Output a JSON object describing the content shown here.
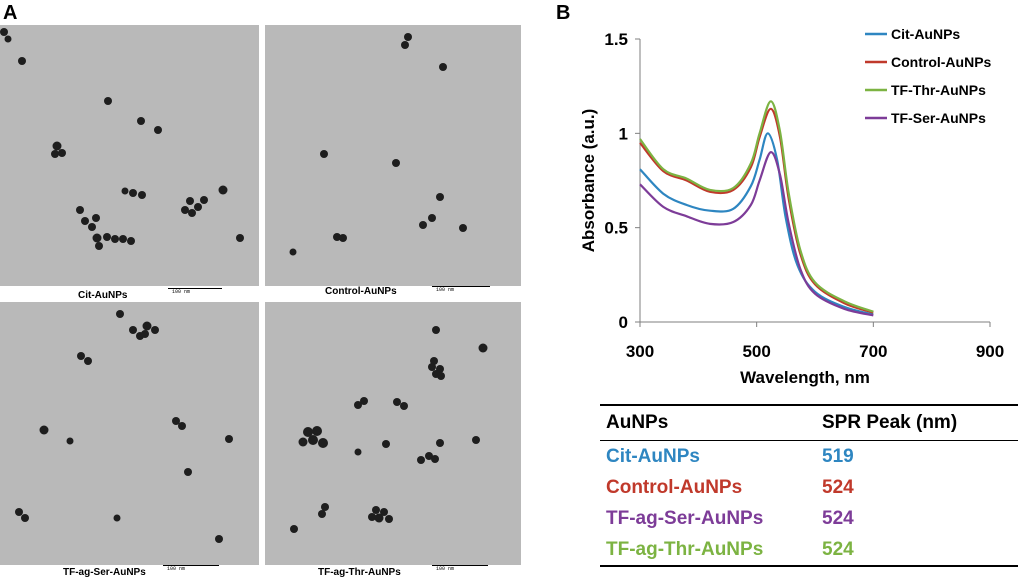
{
  "panel_a": {
    "letter": "A",
    "images": [
      {
        "label": "Cit-AuNPs",
        "scale_text": "100 nm"
      },
      {
        "label": "Control-AuNPs",
        "scale_text": "100 nm"
      },
      {
        "label": "TF-ag-Ser-AuNPs",
        "scale_text": "100 nm"
      },
      {
        "label": "TF-ag-Thr-AuNPs",
        "scale_text": "100 nm"
      }
    ]
  },
  "panel_b": {
    "letter": "B",
    "table": {
      "headers": [
        "AuNPs",
        "SPR Peak (nm)"
      ],
      "rows": [
        {
          "name": "Cit-AuNPs",
          "peak": "519",
          "color": "#2e86c1"
        },
        {
          "name": "Control-AuNPs",
          "peak": "524",
          "color": "#c0392b"
        },
        {
          "name": "TF-ag-Ser-AuNPs",
          "peak": "524",
          "color": "#7d3c98"
        },
        {
          "name": "TF-ag-Thr-AuNPs",
          "peak": "524",
          "color": "#7cb342"
        }
      ]
    }
  },
  "chart_data": {
    "type": "line",
    "title": "",
    "xlabel": "Wavelength, nm",
    "ylabel": "Absorbance (a.u.)",
    "xlim": [
      300,
      900
    ],
    "ylim": [
      0,
      1.5
    ],
    "x_ticks": [
      "300",
      "500",
      "700",
      "900"
    ],
    "y_ticks": [
      "0",
      "0.5",
      "1",
      "1.5"
    ],
    "grid": false,
    "legend_position": "top-right",
    "series": [
      {
        "name": "Cit-AuNPs",
        "color": "#2e86c1",
        "x": [
          300,
          340,
          380,
          420,
          460,
          490,
          505,
          519,
          535,
          550,
          570,
          600,
          650,
          700
        ],
        "y": [
          0.81,
          0.68,
          0.62,
          0.59,
          0.6,
          0.72,
          0.86,
          1.0,
          0.86,
          0.55,
          0.3,
          0.16,
          0.08,
          0.04
        ]
      },
      {
        "name": "Control-AuNPs",
        "color": "#c0392b",
        "x": [
          300,
          340,
          380,
          420,
          460,
          490,
          505,
          524,
          540,
          555,
          575,
          600,
          650,
          700
        ],
        "y": [
          0.95,
          0.8,
          0.75,
          0.69,
          0.7,
          0.82,
          0.98,
          1.13,
          0.98,
          0.65,
          0.36,
          0.2,
          0.1,
          0.05
        ]
      },
      {
        "name": "TF-Thr-AuNPs",
        "color": "#7cb342",
        "x": [
          300,
          340,
          380,
          420,
          460,
          490,
          505,
          524,
          540,
          555,
          575,
          600,
          650,
          700
        ],
        "y": [
          0.97,
          0.81,
          0.76,
          0.7,
          0.71,
          0.84,
          1.0,
          1.17,
          1.01,
          0.68,
          0.38,
          0.21,
          0.11,
          0.055
        ]
      },
      {
        "name": "TF-Ser-AuNPs",
        "color": "#7d3c98",
        "x": [
          300,
          340,
          380,
          420,
          460,
          490,
          505,
          524,
          540,
          555,
          575,
          600,
          650,
          700
        ],
        "y": [
          0.73,
          0.61,
          0.56,
          0.52,
          0.53,
          0.62,
          0.75,
          0.9,
          0.78,
          0.52,
          0.28,
          0.15,
          0.07,
          0.035
        ]
      }
    ]
  }
}
